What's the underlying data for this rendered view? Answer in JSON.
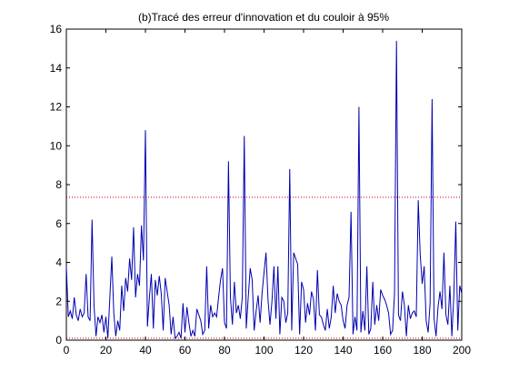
{
  "chart_data": {
    "type": "line",
    "title": "(b)Tracé des erreur d'innovation et du couloir à 95%",
    "xlabel": "",
    "ylabel": "",
    "xlim": [
      0,
      200
    ],
    "ylim": [
      0,
      16
    ],
    "xticks": [
      0,
      20,
      40,
      60,
      80,
      100,
      120,
      140,
      160,
      180,
      200
    ],
    "yticks": [
      0,
      2,
      4,
      6,
      8,
      10,
      12,
      14,
      16
    ],
    "grid": false,
    "legend": "none",
    "series_color": "#0000b0",
    "threshold_color": "#c00000",
    "thresholds": [
      0.1,
      7.35
    ],
    "series": [
      {
        "values": [
          3.8,
          1.2,
          1.5,
          1.1,
          2.2,
          1.3,
          1.0,
          1.6,
          1.2,
          1.4,
          3.4,
          1.2,
          1.0,
          6.2,
          1.8,
          0.2,
          1.2,
          0.9,
          1.3,
          0.4,
          1.2,
          0.1,
          2.2,
          4.3,
          1.4,
          0.2,
          1.0,
          0.5,
          2.8,
          1.5,
          3.2,
          2.5,
          4.2,
          3.1,
          5.8,
          2.2,
          3.4,
          2.8,
          5.9,
          4.1,
          10.8,
          0.7,
          2.2,
          3.4,
          0.6,
          3.1,
          2.3,
          3.3,
          2.4,
          0.5,
          3.2,
          2.5,
          1.8,
          0.3,
          1.2,
          0.1,
          0.2,
          0.4,
          0.1,
          1.9,
          0.4,
          1.7,
          0.9,
          0.2,
          0.5,
          0.2,
          1.6,
          1.3,
          1.0,
          0.3,
          0.5,
          3.8,
          0.6,
          1.8,
          1.2,
          1.4,
          1.2,
          2.2,
          3.1,
          3.7,
          0.9,
          0.6,
          9.2,
          2.2,
          0.8,
          3.0,
          1.4,
          1.8,
          1.1,
          2.2,
          10.5,
          0.6,
          2.2,
          3.7,
          3.1,
          0.5,
          1.5,
          2.3,
          0.9,
          2.4,
          3.5,
          4.5,
          2.1,
          0.8,
          2.0,
          3.8,
          1.1,
          3.8,
          0.3,
          2.2,
          2.0,
          0.9,
          1.4,
          8.8,
          0.5,
          4.5,
          4.2,
          3.9,
          0.3,
          3.0,
          2.6,
          0.9,
          1.9,
          1.3,
          2.5,
          2.1,
          0.5,
          3.6,
          1.3,
          1.2,
          0.8,
          0.5,
          1.6,
          0.6,
          1.2,
          2.8,
          1.4,
          2.4,
          2.0,
          1.8,
          1.0,
          0.6,
          1.8,
          2.2,
          6.6,
          0.3,
          1.2,
          0.5,
          12.0,
          0.4,
          1.5,
          0.5,
          3.8,
          0.3,
          0.6,
          3.0,
          0.8,
          1.8,
          1.0,
          2.6,
          2.3,
          2.1,
          1.8,
          1.4,
          0.3,
          0.5,
          2.4,
          15.4,
          1.3,
          1.0,
          2.5,
          1.8,
          0.2,
          1.8,
          1.1,
          1.4,
          1.5,
          1.2,
          7.2,
          4.4,
          2.9,
          3.8,
          1.0,
          0.4,
          1.9,
          12.4,
          1.1,
          0.2,
          1.7,
          2.5,
          1.6,
          4.5,
          1.3,
          0.8,
          2.8,
          0.2,
          2.3,
          6.1,
          0.5,
          2.8,
          2.4
        ]
      }
    ]
  }
}
